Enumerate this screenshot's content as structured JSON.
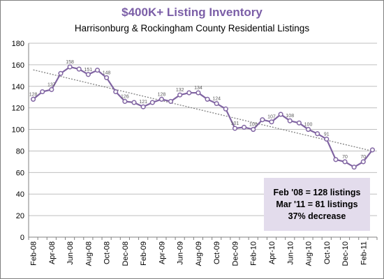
{
  "chart_data": {
    "type": "line",
    "title": "$400K+ Listing Inventory",
    "subtitle": "Harrisonburg & Rockingham County Residential Listings",
    "xlabel": "",
    "ylabel": "",
    "ylim": [
      0,
      180
    ],
    "yticks": [
      0,
      20,
      40,
      60,
      80,
      100,
      120,
      140,
      160,
      180
    ],
    "x_tick_labels": [
      "Feb-08",
      "Apr-08",
      "Jun-08",
      "Aug-08",
      "Oct-08",
      "Dec-08",
      "Feb-09",
      "Apr-09",
      "Jun-09",
      "Aug-09",
      "Oct-09",
      "Dec-09",
      "Feb-10",
      "Apr-10",
      "Jun-10",
      "Aug-10",
      "Oct-10",
      "Dec-10",
      "Feb-11"
    ],
    "x": [
      "Feb-08",
      "Mar-08",
      "Apr-08",
      "May-08",
      "Jun-08",
      "Jul-08",
      "Aug-08",
      "Sep-08",
      "Oct-08",
      "Nov-08",
      "Dec-08",
      "Jan-09",
      "Feb-09",
      "Mar-09",
      "Apr-09",
      "May-09",
      "Jun-09",
      "Jul-09",
      "Aug-09",
      "Sep-09",
      "Oct-09",
      "Nov-09",
      "Dec-09",
      "Jan-10",
      "Feb-10",
      "Mar-10",
      "Apr-10",
      "May-10",
      "Jun-10",
      "Jul-10",
      "Aug-10",
      "Sep-10",
      "Oct-10",
      "Nov-10",
      "Dec-10",
      "Jan-11",
      "Feb-11",
      "Mar-11"
    ],
    "series": [
      {
        "values": [
          128,
          135,
          137,
          152,
          158,
          156,
          151,
          155,
          148,
          135,
          126,
          125,
          121,
          125,
          128,
          126,
          132,
          134,
          134,
          128,
          124,
          119,
          101,
          102,
          100,
          109,
          107,
          114,
          108,
          106,
          100,
          96,
          91,
          72,
          70,
          65,
          70,
          81
        ],
        "color": "#8064a2"
      }
    ],
    "data_labels": [
      {
        "index": 0,
        "text": "128"
      },
      {
        "index": 2,
        "text": "137"
      },
      {
        "index": 4,
        "text": "158"
      },
      {
        "index": 6,
        "text": "151"
      },
      {
        "index": 8,
        "text": "148"
      },
      {
        "index": 10,
        "text": "126"
      },
      {
        "index": 12,
        "text": "121"
      },
      {
        "index": 14,
        "text": "128"
      },
      {
        "index": 16,
        "text": "132"
      },
      {
        "index": 18,
        "text": "134"
      },
      {
        "index": 20,
        "text": "124"
      },
      {
        "index": 22,
        "text": "101"
      },
      {
        "index": 24,
        "text": "100"
      },
      {
        "index": 26,
        "text": "107"
      },
      {
        "index": 28,
        "text": "108"
      },
      {
        "index": 30,
        "text": "100"
      },
      {
        "index": 32,
        "text": "91"
      },
      {
        "index": 34,
        "text": "70"
      },
      {
        "index": 36,
        "text": "70"
      }
    ],
    "trendline": {
      "style": "dotted",
      "color": "#808080"
    },
    "grid": true,
    "legend": "none"
  },
  "summary_box": {
    "line1": "Feb '08 = 128 listings",
    "line2": "Mar '11 = 81 listings",
    "line3": "37% decrease"
  }
}
